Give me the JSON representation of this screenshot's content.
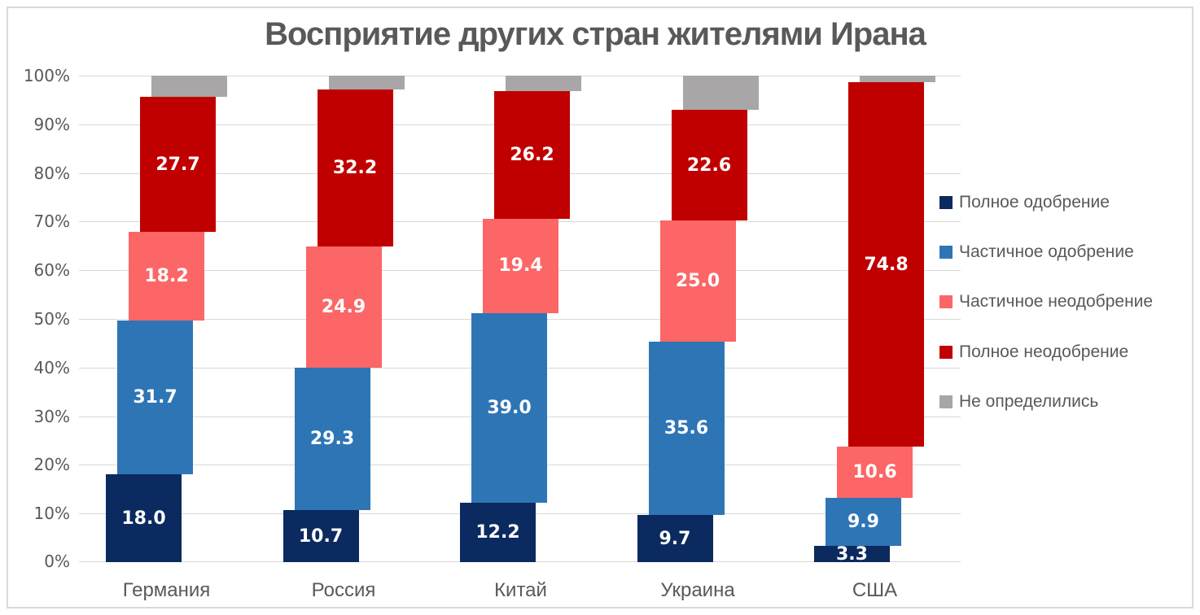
{
  "title": "Восприятие других стран жителями Ирана",
  "chart_data": {
    "type": "bar",
    "subtype": "stacked-100-staircase",
    "title": "Восприятие других стран жителями Ирана",
    "categories": [
      "Германия",
      "Россия",
      "Китай",
      "Украина",
      "США"
    ],
    "series": [
      {
        "name": "Полное одобрение",
        "color": "#0b2a5f",
        "labeled": true,
        "values": [
          18.0,
          10.7,
          12.2,
          9.7,
          3.3
        ]
      },
      {
        "name": "Частичное одобрение",
        "color": "#2e75b6",
        "labeled": true,
        "values": [
          31.7,
          29.3,
          39.0,
          35.6,
          9.9
        ]
      },
      {
        "name": "Частичное неодобрение",
        "color": "#fc6666",
        "labeled": true,
        "values": [
          18.2,
          24.9,
          19.4,
          25.0,
          10.6
        ]
      },
      {
        "name": "Полное неодобрение",
        "color": "#c00000",
        "labeled": true,
        "values": [
          27.7,
          32.2,
          26.2,
          22.6,
          74.8
        ]
      },
      {
        "name": "Не определились",
        "color": "#a8a6a6",
        "labeled": false,
        "values": [
          4.4,
          2.9,
          3.2,
          7.1,
          1.4
        ]
      }
    ],
    "ylabel": "",
    "xlabel": "",
    "ylim": [
      0,
      100
    ],
    "yticks": [
      "0%",
      "10%",
      "20%",
      "30%",
      "40%",
      "50%",
      "60%",
      "70%",
      "80%",
      "90%",
      "100%"
    ],
    "grid": true,
    "gridline_color": "#d9d9d9",
    "text_color": "#595959",
    "label_decimal_places": 1,
    "legend_position": "right"
  }
}
